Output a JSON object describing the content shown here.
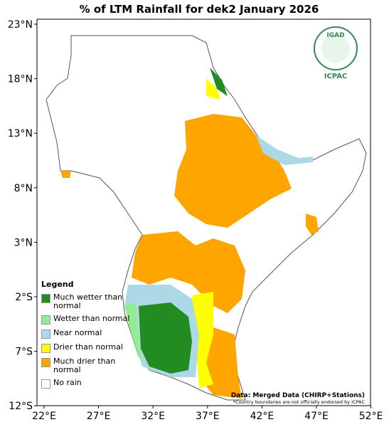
{
  "title": "% of LTM Rainfall for dek2 January 2026",
  "lat_labels": [
    "23°N",
    "18°N",
    "13°N",
    "8°N",
    "3°N",
    "2°S",
    "7°S",
    "12°S"
  ],
  "lon_labels": [
    "22°E",
    "27°E",
    "32°E",
    "37°E",
    "42°E",
    "47°E",
    "52°E"
  ],
  "legend": {
    "title": "Legend",
    "items": [
      {
        "label": "Much wetter than normal",
        "color": "#228b22"
      },
      {
        "label": "Wetter than normal",
        "color": "#90ee90"
      },
      {
        "label": "Near normal",
        "color": "#add8e6"
      },
      {
        "label": "Drier than normal",
        "color": "#ffff00"
      },
      {
        "label": "Much drier than normal",
        "color": "#ffa500"
      },
      {
        "label": "No rain",
        "color": "#ffffff"
      }
    ]
  },
  "logo": {
    "name": "IGAD",
    "org": "ICPAC"
  },
  "source": "Data: Merged Data (CHIRP+Stations)",
  "disclaimer": "*Country boundaries are not officially endorsed by ICPAC"
}
